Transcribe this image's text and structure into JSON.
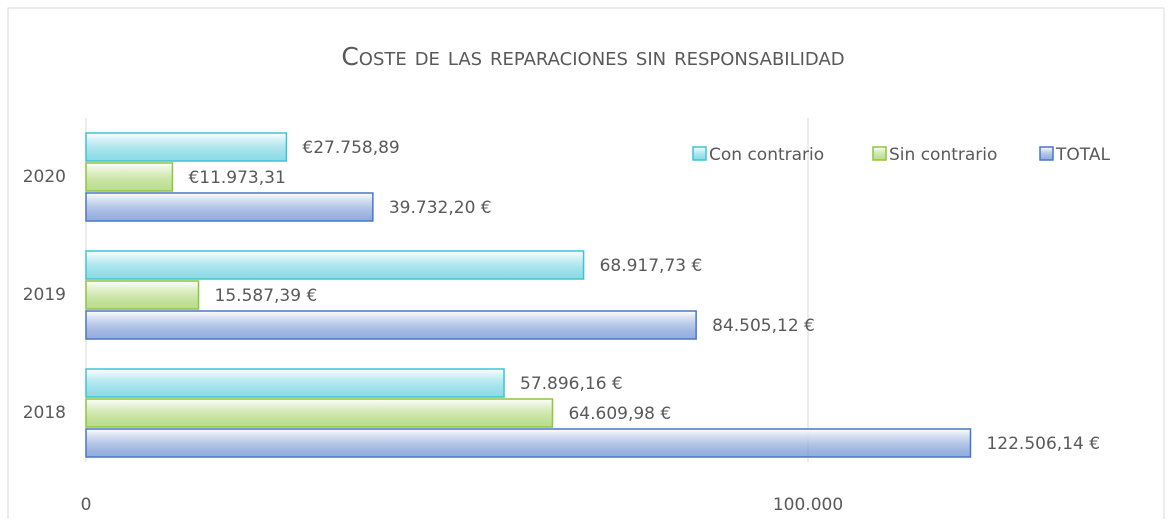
{
  "chart_data": {
    "type": "hbar",
    "title": "Coste de las reparaciones sin responsabilidad",
    "categories": [
      "2018",
      "2019",
      "2020"
    ],
    "series": [
      {
        "name": "Con contrario",
        "color": "#3ec3d6",
        "values": [
          57896.16,
          68917.73,
          27758.89
        ],
        "value_labels": [
          "57.896,16 €",
          "68.917,73 €",
          "€27.758,89"
        ]
      },
      {
        "name": "Sin contrario",
        "color": "#8cc63e",
        "values": [
          64609.98,
          15587.39,
          11973.31
        ],
        "value_labels": [
          "64.609,98 €",
          "15.587,39 €",
          "€11.973,31"
        ]
      },
      {
        "name": "TOTAL",
        "color": "#4a76c6",
        "values": [
          122506.14,
          84505.12,
          39732.2
        ],
        "value_labels": [
          "122.506,14 €",
          "84.505,12 €",
          "39.732,20 €"
        ]
      }
    ],
    "xlim": [
      0,
      147000
    ],
    "xticks": [
      0,
      {
        "value": 100000,
        "label": "100.000"
      }
    ],
    "grid": true,
    "legend": "top-right"
  }
}
